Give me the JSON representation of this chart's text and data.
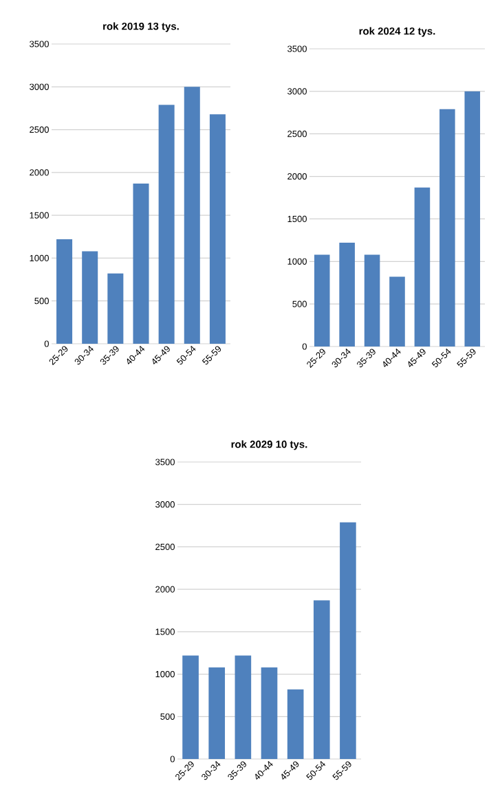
{
  "chart_data": [
    {
      "type": "bar",
      "title": "rok 2019  13 tys.",
      "categories": [
        "25-29",
        "30-34",
        "35-39",
        "40-44",
        "45-49",
        "50-54",
        "55-59"
      ],
      "values": [
        1220,
        1080,
        820,
        1870,
        2790,
        3000,
        2680
      ],
      "color": "#4f81bd",
      "ylim": [
        0,
        3500
      ],
      "yticks": [
        0,
        500,
        1000,
        1500,
        2000,
        2500,
        3000,
        3500
      ],
      "grid": "y"
    },
    {
      "type": "bar",
      "title": "rok 2024    12 tys.",
      "categories": [
        "25-29",
        "30-34",
        "35-39",
        "40-44",
        "45-49",
        "50-54",
        "55-59"
      ],
      "values": [
        1080,
        1220,
        1080,
        820,
        1870,
        2790,
        3000
      ],
      "color": "#4f81bd",
      "ylim": [
        0,
        3500
      ],
      "yticks": [
        0,
        500,
        1000,
        1500,
        2000,
        2500,
        3000,
        3500
      ],
      "grid": "y"
    },
    {
      "type": "bar",
      "title": "rok 2029  10 tys.",
      "categories": [
        "25-29",
        "30-34",
        "35-39",
        "40-44",
        "45-49",
        "50-54",
        "55-59"
      ],
      "values": [
        1220,
        1080,
        1220,
        1080,
        820,
        1870,
        2790
      ],
      "color": "#4f81bd",
      "ylim": [
        0,
        3500
      ],
      "yticks": [
        0,
        500,
        1000,
        1500,
        2000,
        2500,
        3000,
        3500
      ],
      "grid": "y"
    }
  ]
}
